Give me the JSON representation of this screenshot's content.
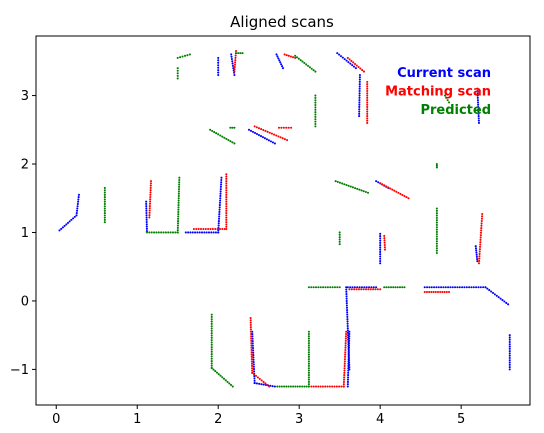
{
  "chart_data": {
    "type": "scatter",
    "title": "Aligned scans",
    "xlabel": "",
    "ylabel": "",
    "xlim": [
      -0.25,
      5.85
    ],
    "ylim": [
      -1.52,
      3.87
    ],
    "xticks": [
      0,
      1,
      2,
      3,
      4,
      5
    ],
    "yticks": [
      -1,
      0,
      1,
      2,
      3
    ],
    "ytick_labels": [
      "−1",
      "0",
      "1",
      "2",
      "3"
    ],
    "grid": false,
    "legend_placement": "top-right",
    "series": [
      {
        "name": "Current scan",
        "color": "#0000ff",
        "segments": [
          [
            [
              0.04,
              1.03
            ],
            [
              0.25,
              1.25
            ],
            [
              0.28,
              1.55
            ]
          ],
          [
            [
              1.11,
              1.45
            ],
            [
              1.12,
              1.02
            ]
          ],
          [
            [
              1.6,
              1.0
            ],
            [
              2.0,
              1.0
            ],
            [
              2.04,
              1.8
            ]
          ],
          [
            [
              2.0,
              3.55
            ],
            [
              2.0,
              3.3
            ]
          ],
          [
            [
              2.16,
              3.6
            ],
            [
              2.2,
              3.3
            ]
          ],
          [
            [
              2.38,
              2.5
            ],
            [
              2.7,
              2.3
            ]
          ],
          [
            [
              2.72,
              3.6
            ],
            [
              2.8,
              3.4
            ]
          ],
          [
            [
              3.47,
              3.62
            ],
            [
              3.7,
              3.4
            ]
          ],
          [
            [
              3.75,
              3.3
            ],
            [
              3.74,
              2.7
            ]
          ],
          [
            [
              3.95,
              1.75
            ],
            [
              4.1,
              1.65
            ]
          ],
          [
            [
              4.0,
              0.98
            ],
            [
              4.0,
              0.55
            ]
          ],
          [
            [
              3.6,
              0.2
            ],
            [
              3.95,
              0.2
            ]
          ],
          [
            [
              4.55,
              0.2
            ],
            [
              5.3,
              0.2
            ]
          ],
          [
            [
              5.3,
              0.2
            ],
            [
              5.58,
              -0.05
            ]
          ],
          [
            [
              5.18,
              0.8
            ],
            [
              5.2,
              0.58
            ]
          ],
          [
            [
              5.2,
              3.1
            ],
            [
              5.22,
              2.6
            ]
          ],
          [
            [
              3.58,
              0.2
            ],
            [
              3.62,
              -1.0
            ]
          ],
          [
            [
              3.62,
              -0.45
            ],
            [
              3.6,
              -1.25
            ]
          ],
          [
            [
              2.42,
              -0.45
            ],
            [
              2.45,
              -1.2
            ]
          ],
          [
            [
              2.45,
              -1.2
            ],
            [
              2.7,
              -1.25
            ]
          ],
          [
            [
              5.6,
              -0.5
            ],
            [
              5.6,
              -1.0
            ]
          ]
        ]
      },
      {
        "name": "Matching scan",
        "color": "#ff0000",
        "segments": [
          [
            [
              1.17,
              1.75
            ],
            [
              1.15,
              1.22
            ]
          ],
          [
            [
              1.7,
              1.05
            ],
            [
              2.08,
              1.05
            ]
          ],
          [
            [
              2.1,
              1.05
            ],
            [
              2.1,
              1.85
            ]
          ],
          [
            [
              2.22,
              3.65
            ],
            [
              2.2,
              3.35
            ]
          ],
          [
            [
              2.45,
              2.55
            ],
            [
              2.85,
              2.35
            ]
          ],
          [
            [
              2.75,
              2.53
            ],
            [
              2.9,
              2.53
            ]
          ],
          [
            [
              2.82,
              3.6
            ],
            [
              2.95,
              3.55
            ]
          ],
          [
            [
              3.6,
              3.55
            ],
            [
              3.8,
              3.35
            ]
          ],
          [
            [
              3.84,
              3.2
            ],
            [
              3.84,
              2.6
            ]
          ],
          [
            [
              4.0,
              1.72
            ],
            [
              4.35,
              1.5
            ]
          ],
          [
            [
              4.05,
              0.95
            ],
            [
              4.06,
              0.75
            ]
          ],
          [
            [
              3.62,
              0.17
            ],
            [
              4.0,
              0.17
            ]
          ],
          [
            [
              4.55,
              0.13
            ],
            [
              4.85,
              0.13
            ]
          ],
          [
            [
              5.26,
              1.27
            ],
            [
              5.22,
              0.55
            ]
          ],
          [
            [
              2.4,
              -0.25
            ],
            [
              2.42,
              -1.05
            ]
          ],
          [
            [
              2.42,
              -1.05
            ],
            [
              2.63,
              -1.25
            ]
          ],
          [
            [
              3.15,
              -1.25
            ],
            [
              3.55,
              -1.25
            ]
          ],
          [
            [
              3.55,
              -1.25
            ],
            [
              3.58,
              -0.45
            ]
          ]
        ]
      },
      {
        "name": "Predicted",
        "color": "#008000",
        "segments": [
          [
            [
              1.5,
              3.55
            ],
            [
              1.65,
              3.6
            ]
          ],
          [
            [
              1.5,
              3.4
            ],
            [
              1.5,
              3.25
            ]
          ],
          [
            [
              1.9,
              2.5
            ],
            [
              2.2,
              2.3
            ]
          ],
          [
            [
              2.15,
              2.53
            ],
            [
              2.2,
              2.53
            ]
          ],
          [
            [
              2.22,
              3.62
            ],
            [
              2.3,
              3.62
            ]
          ],
          [
            [
              2.95,
              3.58
            ],
            [
              3.2,
              3.35
            ]
          ],
          [
            [
              3.2,
              3.0
            ],
            [
              3.2,
              2.55
            ]
          ],
          [
            [
              3.45,
              1.75
            ],
            [
              3.85,
              1.58
            ]
          ],
          [
            [
              3.5,
              1.0
            ],
            [
              3.5,
              0.83
            ]
          ],
          [
            [
              3.12,
              0.2
            ],
            [
              3.5,
              0.2
            ]
          ],
          [
            [
              4.05,
              0.2
            ],
            [
              4.3,
              0.2
            ]
          ],
          [
            [
              4.7,
              1.35
            ],
            [
              4.7,
              0.7
            ]
          ],
          [
            [
              4.7,
              2.0
            ],
            [
              4.7,
              1.95
            ]
          ],
          [
            [
              4.8,
              3.0
            ],
            [
              4.85,
              2.9
            ]
          ],
          [
            [
              0.6,
              1.65
            ],
            [
              0.6,
              1.15
            ]
          ],
          [
            [
              1.12,
              1.0
            ],
            [
              1.5,
              1.0
            ]
          ],
          [
            [
              1.5,
              1.0
            ],
            [
              1.52,
              1.8
            ]
          ],
          [
            [
              1.92,
              -0.2
            ],
            [
              1.92,
              -0.98
            ]
          ],
          [
            [
              1.92,
              -0.98
            ],
            [
              2.18,
              -1.25
            ]
          ],
          [
            [
              2.73,
              -1.25
            ],
            [
              3.12,
              -1.25
            ]
          ],
          [
            [
              3.12,
              -1.25
            ],
            [
              3.12,
              -0.45
            ]
          ]
        ]
      }
    ]
  }
}
